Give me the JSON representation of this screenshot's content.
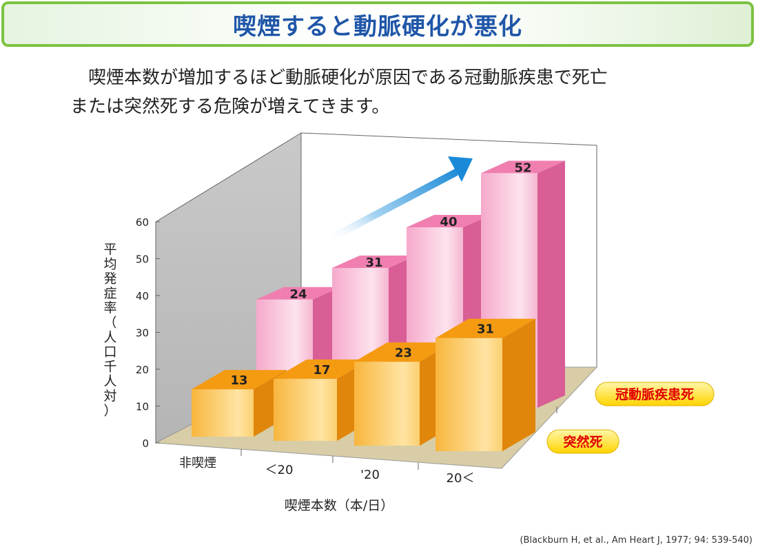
{
  "title": "喫煙すると動脈硬化が悪化",
  "lead": {
    "line1": "喫煙本数が増加するほど動脈硬化が原因である冠動脈疾患で死亡",
    "line2": "または突然死する危険が増えてきます。"
  },
  "source": "(Blackburn H, et al., Am Heart J, 1977; 94: 539-540)",
  "colors": {
    "title_text": "#1f56a8",
    "title_border": "#7cc242",
    "pink_series": "#ee8fba",
    "orange_series": "#f6b13c",
    "arrow": "#2a95d8",
    "label_badge": "#ffe11a",
    "label_text": "#e00000"
  },
  "chart_data": {
    "type": "bar",
    "subtype": "3d-grouped-bar",
    "categories": [
      "非喫煙",
      "＜20",
      "'20",
      "20＜"
    ],
    "series": [
      {
        "name": "冠動脈疾患死",
        "values": [
          24,
          31,
          40,
          52
        ],
        "color": "#ee8fba"
      },
      {
        "name": "突然死",
        "values": [
          13,
          17,
          23,
          31
        ],
        "color": "#f6b13c"
      }
    ],
    "ylabel": "平均発症率（人口千人対）",
    "xlabel": "喫煙本数（本/日）",
    "ylim": [
      0,
      60
    ],
    "yticks": [
      0,
      10,
      20,
      30,
      40,
      50,
      60
    ],
    "annotations": [
      "trend-arrow"
    ],
    "legend": "right"
  }
}
